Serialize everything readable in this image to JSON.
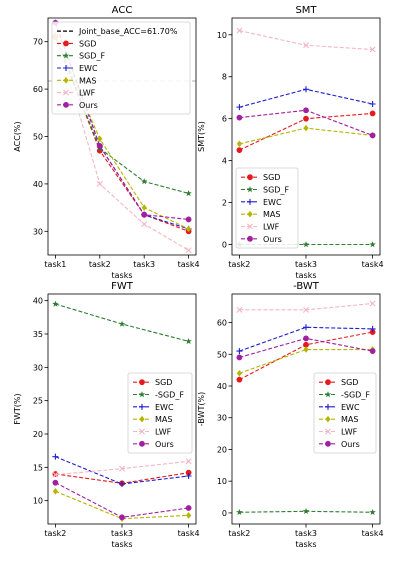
{
  "chart_data": [
    {
      "type": "line",
      "title": "ACC",
      "xlabel": "tasks",
      "ylabel": "ACC(%)",
      "categories": [
        "task1",
        "task2",
        "task3",
        "task4"
      ],
      "yticks": [
        30,
        40,
        50,
        60,
        70
      ],
      "ylim": [
        25,
        75
      ],
      "grid": false,
      "legend": "top-right",
      "reference_line": {
        "name": "Joint_base_ACC=61.70%",
        "value": 61.7,
        "color": "#b0b0b0"
      },
      "series": [
        {
          "name": "SGD",
          "values": [
            71.0,
            47.0,
            33.5,
            30.0
          ],
          "color": "#e41a1c",
          "marker": "circle",
          "dash": true
        },
        {
          "name": "SGD_F",
          "values": [
            71.0,
            47.5,
            40.5,
            38.0
          ],
          "color": "#2e7d32",
          "marker": "star",
          "dash": true
        },
        {
          "name": "EWC",
          "values": [
            74.0,
            48.0,
            33.5,
            30.5
          ],
          "color": "#1f1fd0",
          "marker": "plus",
          "dash": true
        },
        {
          "name": "MAS",
          "values": [
            71.0,
            49.5,
            35.0,
            30.5
          ],
          "color": "#b5b500",
          "marker": "diamond",
          "dash": true
        },
        {
          "name": "LWF",
          "values": [
            72.0,
            40.0,
            31.5,
            26.0
          ],
          "color": "#f4b6c2",
          "marker": "x",
          "dash": true
        },
        {
          "name": "Ours",
          "values": [
            74.0,
            48.0,
            33.5,
            32.5
          ],
          "color": "#a020a0",
          "marker": "circle",
          "dash": true
        }
      ]
    },
    {
      "type": "line",
      "title": "SMT",
      "xlabel": "tasks",
      "ylabel": "SMT(%)",
      "categories": [
        "task2",
        "task3",
        "task4"
      ],
      "yticks": [
        0,
        2,
        4,
        6,
        8,
        10
      ],
      "ylim": [
        -0.5,
        10.8
      ],
      "grid": false,
      "legend": "lower-left",
      "series": [
        {
          "name": "SGD",
          "values": [
            4.5,
            6.0,
            6.25
          ],
          "color": "#e41a1c",
          "marker": "circle",
          "dash": true
        },
        {
          "name": "SGD_F",
          "values": [
            0.0,
            0.0,
            0.0
          ],
          "color": "#2e7d32",
          "marker": "star",
          "dash": true
        },
        {
          "name": "EWC",
          "values": [
            6.55,
            7.4,
            6.7
          ],
          "color": "#1f1fd0",
          "marker": "plus",
          "dash": true
        },
        {
          "name": "MAS",
          "values": [
            4.8,
            5.55,
            5.2
          ],
          "color": "#b5b500",
          "marker": "diamond",
          "dash": true
        },
        {
          "name": "LWF",
          "values": [
            10.2,
            9.5,
            9.3
          ],
          "color": "#f4b6c2",
          "marker": "x",
          "dash": true
        },
        {
          "name": "Ours",
          "values": [
            6.05,
            6.4,
            5.2
          ],
          "color": "#a020a0",
          "marker": "circle",
          "dash": true
        }
      ]
    },
    {
      "type": "line",
      "title": "FWT",
      "xlabel": "tasks",
      "ylabel": "FWT(%)",
      "categories": [
        "task2",
        "task3",
        "task4"
      ],
      "yticks": [
        10,
        15,
        20,
        25,
        30,
        35,
        40
      ],
      "ylim": [
        6.5,
        41
      ],
      "grid": false,
      "legend": "center-right",
      "series": [
        {
          "name": "SGD",
          "values": [
            14.0,
            12.6,
            14.2
          ],
          "color": "#e41a1c",
          "marker": "circle",
          "dash": true
        },
        {
          "name": "-SGD_F",
          "values": [
            39.5,
            36.5,
            33.9
          ],
          "color": "#2e7d32",
          "marker": "star",
          "dash": true
        },
        {
          "name": "EWC",
          "values": [
            16.6,
            12.5,
            13.7
          ],
          "color": "#1f1fd0",
          "marker": "plus",
          "dash": true
        },
        {
          "name": "MAS",
          "values": [
            11.4,
            7.3,
            7.8
          ],
          "color": "#b5b500",
          "marker": "diamond",
          "dash": true
        },
        {
          "name": "LWF",
          "values": [
            13.9,
            14.8,
            15.9
          ],
          "color": "#f4b6c2",
          "marker": "x",
          "dash": true
        },
        {
          "name": "Ours",
          "values": [
            12.7,
            7.5,
            8.9
          ],
          "color": "#a020a0",
          "marker": "circle",
          "dash": true
        }
      ]
    },
    {
      "type": "line",
      "title": "-BWT",
      "xlabel": "tasks",
      "ylabel": "-BWT(%)",
      "categories": [
        "task2",
        "task3",
        "task4"
      ],
      "yticks": [
        0,
        10,
        20,
        30,
        40,
        50,
        60
      ],
      "ylim": [
        -3.5,
        69
      ],
      "grid": false,
      "legend": "center-right",
      "series": [
        {
          "name": "SGD",
          "values": [
            42.0,
            53.0,
            57.0
          ],
          "color": "#e41a1c",
          "marker": "circle",
          "dash": true
        },
        {
          "name": "-SGD_F",
          "values": [
            0.2,
            0.5,
            0.2
          ],
          "color": "#2e7d32",
          "marker": "star",
          "dash": true
        },
        {
          "name": "EWC",
          "values": [
            51.0,
            58.5,
            58.0
          ],
          "color": "#1f1fd0",
          "marker": "plus",
          "dash": true
        },
        {
          "name": "MAS",
          "values": [
            44.0,
            51.5,
            51.5
          ],
          "color": "#b5b500",
          "marker": "diamond",
          "dash": true
        },
        {
          "name": "LWF",
          "values": [
            64.0,
            64.0,
            66.0
          ],
          "color": "#f4b6c2",
          "marker": "x",
          "dash": true
        },
        {
          "name": "Ours",
          "values": [
            49.0,
            55.0,
            51.0
          ],
          "color": "#a020a0",
          "marker": "circle",
          "dash": true
        }
      ]
    }
  ]
}
